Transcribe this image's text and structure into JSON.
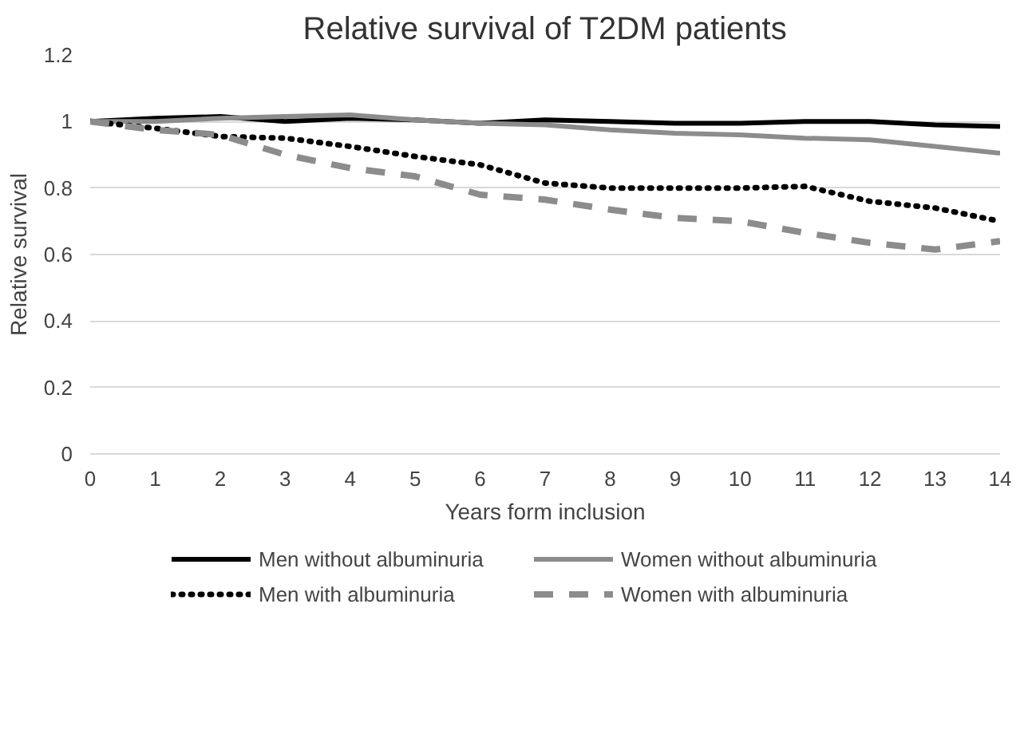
{
  "chart_data": {
    "type": "line",
    "title": "Relative survival of T2DM patients",
    "xlabel": "Years form inclusion",
    "ylabel": "Relative survival",
    "x": [
      0,
      1,
      2,
      3,
      4,
      5,
      6,
      7,
      8,
      9,
      10,
      11,
      12,
      13,
      14
    ],
    "xlim": [
      0,
      14
    ],
    "xticks": [
      0,
      1,
      2,
      3,
      4,
      5,
      6,
      7,
      8,
      9,
      10,
      11,
      12,
      13,
      14
    ],
    "ylim": [
      0,
      1.2
    ],
    "yticks": [
      0,
      0.2,
      0.4,
      0.6,
      0.8,
      1,
      1.2
    ],
    "grid": "y",
    "legend": "bottom",
    "series": [
      {
        "name": "Men without albuminuria",
        "color": "#000000",
        "line_style": "solid",
        "values": [
          1,
          1.01,
          1.015,
          1.0,
          1.01,
          1.005,
          0.995,
          1.005,
          1.0,
          0.995,
          0.995,
          1.0,
          1.0,
          0.99,
          0.985
        ]
      },
      {
        "name": "Women without albuminuria",
        "color": "#8c8c8c",
        "line_style": "solid",
        "values": [
          1,
          1.0,
          1.01,
          1.015,
          1.02,
          1.005,
          0.995,
          0.99,
          0.975,
          0.965,
          0.96,
          0.95,
          0.945,
          0.925,
          0.905
        ]
      },
      {
        "name": "Men with albuminuria",
        "color": "#000000",
        "line_style": "dotted",
        "values": [
          1,
          0.98,
          0.955,
          0.95,
          0.925,
          0.895,
          0.87,
          0.815,
          0.8,
          0.8,
          0.8,
          0.805,
          0.76,
          0.74,
          0.7
        ]
      },
      {
        "name": "Women with albuminuria",
        "color": "#8c8c8c",
        "line_style": "dashed",
        "values": [
          1,
          0.975,
          0.96,
          0.9,
          0.86,
          0.835,
          0.78,
          0.765,
          0.735,
          0.71,
          0.7,
          0.665,
          0.635,
          0.615,
          0.64
        ]
      }
    ]
  }
}
